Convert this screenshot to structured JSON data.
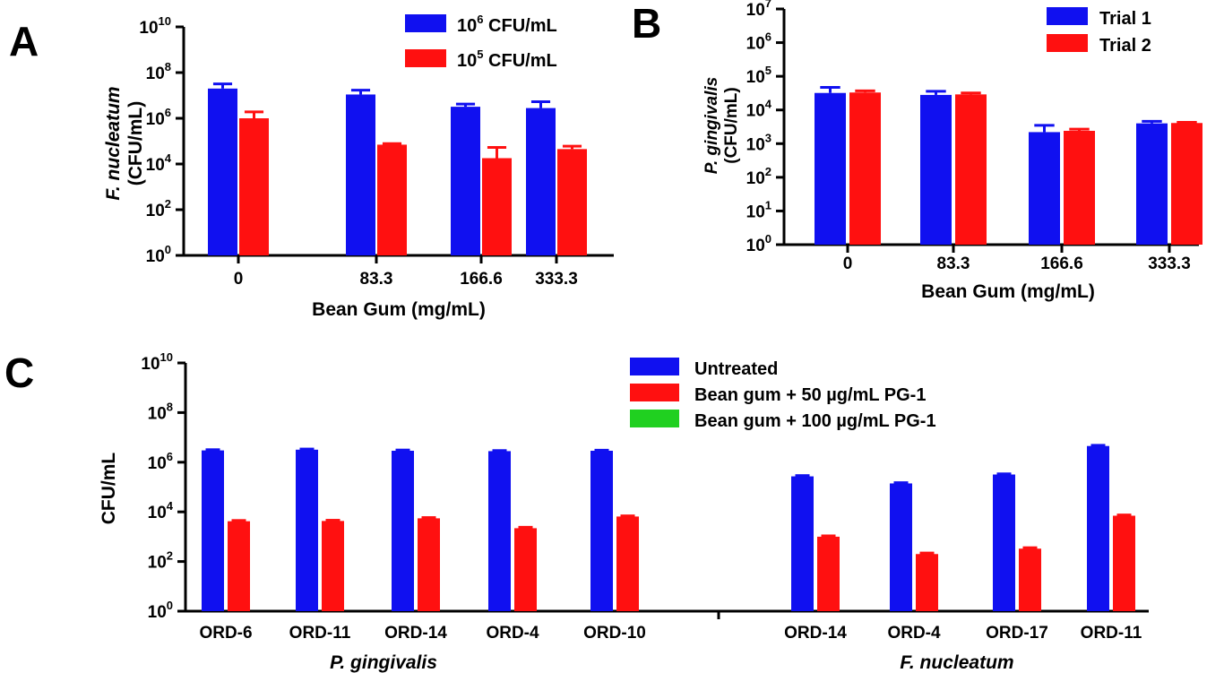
{
  "colors": {
    "blue": "#1010f0",
    "red": "#ff1010",
    "green": "#20d020",
    "axis": "#000000"
  },
  "chart_data": [
    {
      "id": "A",
      "type": "bar",
      "panel_label": "A",
      "title": "",
      "categories": [
        "0",
        "83.3",
        "166.6",
        "333.3"
      ],
      "series": [
        {
          "name": "10^6 CFU/mL",
          "legend_base": "10",
          "legend_exp": "6",
          "legend_rest": " CFU/mL",
          "color": "blue",
          "values": [
            20000000,
            11000000,
            3200000,
            2800000
          ],
          "errors": [
            12000000,
            6000000,
            1000000,
            2500000
          ]
        },
        {
          "name": "10^5 CFU/mL",
          "legend_base": "10",
          "legend_exp": "5",
          "legend_rest": " CFU/mL",
          "color": "red",
          "values": [
            1000000,
            70000,
            18000,
            45000
          ],
          "errors": [
            900000,
            8000,
            35000,
            15000
          ]
        }
      ],
      "xlabel": "Bean Gum (mg/mL)",
      "ylabel_line1": "F. nucleatum",
      "ylabel_line2": "(CFU/mL)",
      "yscale": "log",
      "ylim": [
        1,
        10000000000
      ],
      "yticks": [
        {
          "value": 1,
          "base": "10",
          "exp": "0"
        },
        {
          "value": 100,
          "base": "10",
          "exp": "2"
        },
        {
          "value": 10000,
          "base": "10",
          "exp": "4"
        },
        {
          "value": 1000000,
          "base": "10",
          "exp": "6"
        },
        {
          "value": 100000000,
          "base": "10",
          "exp": "8"
        },
        {
          "value": 10000000000,
          "base": "10",
          "exp": "10"
        }
      ],
      "legend_position": "top-right"
    },
    {
      "id": "B",
      "type": "bar",
      "panel_label": "B",
      "title": "",
      "categories": [
        "0",
        "83.3",
        "166.6",
        "333.3"
      ],
      "series": [
        {
          "name": "Trial 1",
          "legend_base": "Trial 1",
          "legend_exp": "",
          "legend_rest": "",
          "color": "blue",
          "values": [
            32000,
            28000,
            2200,
            4000
          ],
          "errors": [
            15000,
            8000,
            1300,
            600
          ]
        },
        {
          "name": "Trial 2",
          "legend_base": "Trial 2",
          "legend_exp": "",
          "legend_rest": "",
          "color": "red",
          "values": [
            33000,
            29000,
            2400,
            4100
          ],
          "errors": [
            4000,
            3000,
            300,
            200
          ]
        }
      ],
      "xlabel": "Bean Gum (mg/mL)",
      "ylabel_line1": "P. gingivalis",
      "ylabel_line2": "(CFU/mL)",
      "yscale": "log",
      "ylim": [
        1,
        10000000
      ],
      "yticks": [
        {
          "value": 1,
          "base": "10",
          "exp": "0"
        },
        {
          "value": 10,
          "base": "10",
          "exp": "1"
        },
        {
          "value": 100,
          "base": "10",
          "exp": "2"
        },
        {
          "value": 1000,
          "base": "10",
          "exp": "3"
        },
        {
          "value": 10000,
          "base": "10",
          "exp": "4"
        },
        {
          "value": 100000,
          "base": "10",
          "exp": "5"
        },
        {
          "value": 1000000,
          "base": "10",
          "exp": "6"
        },
        {
          "value": 10000000,
          "base": "10",
          "exp": "7"
        }
      ],
      "legend_position": "top-right"
    },
    {
      "id": "C",
      "type": "bar",
      "panel_label": "C",
      "title": "",
      "groups": [
        {
          "label": "P. gingivalis",
          "categories": [
            "ORD-6",
            "ORD-11",
            "ORD-14",
            "ORD-4",
            "ORD-10"
          ]
        },
        {
          "label": "F. nucleatum",
          "categories": [
            "ORD-14",
            "ORD-4",
            "ORD-17",
            "ORD-11"
          ]
        }
      ],
      "series": [
        {
          "name": "Untreated",
          "color": "blue",
          "values": [
            3000000,
            3200000,
            2900000,
            2800000,
            2900000,
            270000,
            140000,
            320000,
            4500000
          ],
          "errors": [
            200000,
            200000,
            200000,
            150000,
            150000,
            20000,
            10000,
            20000,
            300000
          ]
        },
        {
          "name": "Bean gum  + 50 µg/mL PG-1",
          "color": "red",
          "values": [
            4200,
            4300,
            5500,
            2200,
            6500,
            1000,
            200,
            330,
            7000
          ],
          "errors": [
            300,
            300,
            400,
            200,
            400,
            80,
            20,
            30,
            500
          ]
        },
        {
          "name": "Bean gum + 100 µg/mL PG-1",
          "color": "green",
          "values": [
            null,
            null,
            null,
            null,
            null,
            null,
            null,
            null,
            null
          ]
        }
      ],
      "xlabel": "",
      "ylabel": "CFU/mL",
      "yscale": "log",
      "ylim": [
        1,
        10000000000
      ],
      "yticks": [
        {
          "value": 1,
          "base": "10",
          "exp": "0"
        },
        {
          "value": 100,
          "base": "10",
          "exp": "2"
        },
        {
          "value": 10000,
          "base": "10",
          "exp": "4"
        },
        {
          "value": 1000000,
          "base": "10",
          "exp": "6"
        },
        {
          "value": 100000000,
          "base": "10",
          "exp": "8"
        },
        {
          "value": 10000000000,
          "base": "10",
          "exp": "10"
        }
      ],
      "legend_position": "top-right"
    }
  ]
}
